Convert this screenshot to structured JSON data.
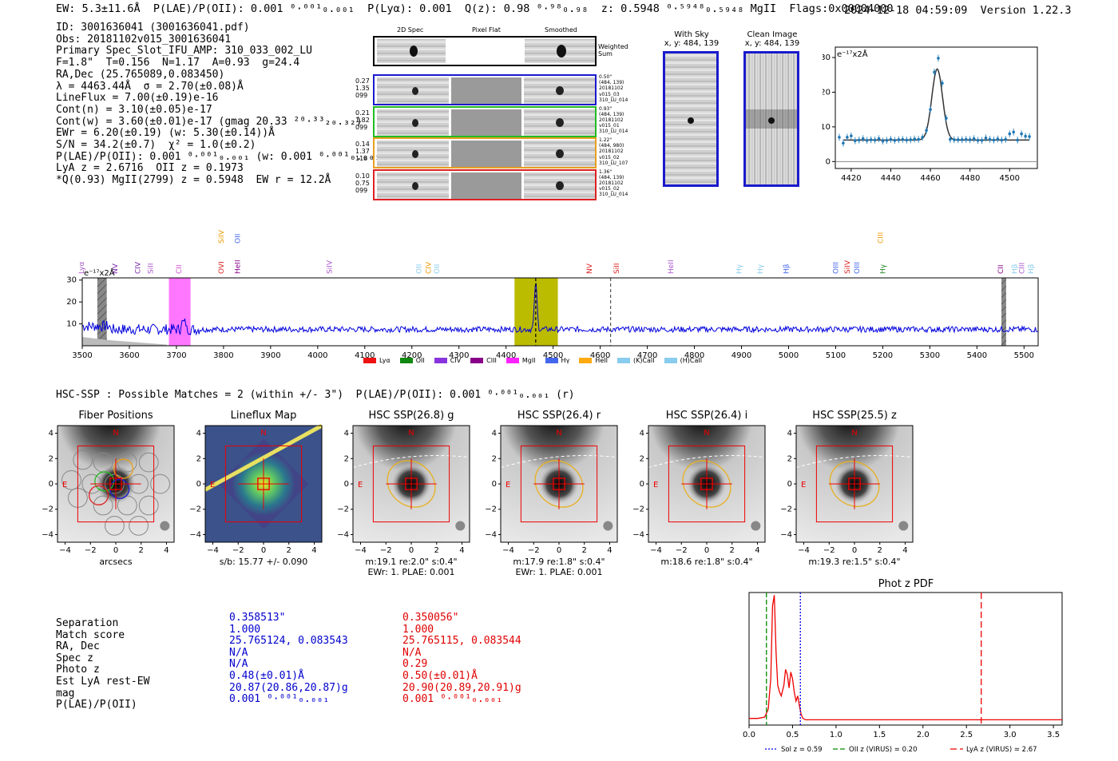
{
  "header": {
    "left": "EW: 5.3±11.6Å  P(LAE)/P(OII): 0.001 ⁰·⁰⁰¹₀.₀₀₁  P(Lyα): 0.001  Q(z): 0.98 ⁰·⁹⁸₀.₉₈  z: 0.5948 ⁰·⁵⁹⁴⁸₀.₅₉₄₈ MgII  Flags:0x00004000",
    "right": "2024-12-18 04:59:09  Version 1.22.3"
  },
  "info": [
    "ID: 3001636041 (3001636041.pdf)",
    "Obs: 20181102v015_3001636041",
    "Primary Spec_Slot_IFU_AMP: 310_033_002_LU",
    "F=1.8\"  T=0.156  N=1.17  A=0.93  g=24.4",
    "RA,Dec (25.765089,0.083450)",
    "λ = 4463.44Å  σ = 2.70(±0.08)Å",
    "LineFlux = 7.00(±0.19)e-16",
    "Cont(n) = 3.10(±0.05)e-17",
    "Cont(w) = 3.60(±0.01)e-17 (gmag 20.33 ²⁰·³³₂₀.₃₂)",
    "EWr = 6.20(±0.19) (w: 5.30(±0.14))Å",
    "S/N = 34.2(±0.7)  χ² = 1.0(±0.2)",
    "P(LAE)/P(OII): 0.001 ⁰·⁰⁰¹₀.₀₀₁ (w: 0.001 ⁰·⁰⁰¹₀.₀₀₁)",
    "LyA z = 2.6716  OII z = 0.1973",
    "*Q(0.93) MgII(2799) z = 0.5948  EW r = 12.2Å"
  ],
  "cutouts": {
    "col_headers": [
      "2D Spec",
      "Pixel Flat",
      "Smoothed"
    ],
    "weighted_label": "Weighted Sum",
    "rows": [
      {
        "left": [
          "0.27",
          "1.35",
          "099"
        ],
        "right": [
          "0.50\"",
          "(484, 139)",
          "20181102",
          "v015_03",
          "310_LU_014"
        ],
        "color": "#1a1acc"
      },
      {
        "left": [
          "0.21",
          "1.82",
          "099"
        ],
        "right": [
          "0.93\"",
          "(484, 139)",
          "20181102",
          "v015_01",
          "310_LU_014"
        ],
        "color": "#22bb22"
      },
      {
        "left": [
          "0.14",
          "1.37",
          "118"
        ],
        "right": [
          "1.22\"",
          "(484, 980)",
          "20181102",
          "v015_02",
          "310_LU_107"
        ],
        "color": "#e8a020"
      },
      {
        "left": [
          "0.10",
          "0.75",
          "099"
        ],
        "right": [
          "1.36\"",
          "(484, 139)",
          "20181102",
          "v015_02",
          "310_LU_014"
        ],
        "color": "#dd2222"
      }
    ]
  },
  "with_sky": {
    "title": "With Sky",
    "coords": "x, y: 484, 139"
  },
  "clean_image": {
    "title": "Clean Image",
    "coords": "x, y: 484, 139"
  },
  "zoom_plot": {
    "unit": "e⁻¹⁷x2Å",
    "chart_data": {
      "type": "line",
      "title": "",
      "xlim": [
        4412,
        4514
      ],
      "ylim": [
        -2,
        33
      ],
      "xticks": [
        4420,
        4440,
        4460,
        4480,
        4500
      ],
      "yticks": [
        0,
        10,
        20,
        30
      ],
      "x": [
        4414,
        4416,
        4418,
        4420,
        4422,
        4424,
        4426,
        4428,
        4430,
        4432,
        4434,
        4436,
        4438,
        4440,
        4442,
        4444,
        4446,
        4448,
        4450,
        4452,
        4454,
        4456,
        4458,
        4460,
        4462,
        4464,
        4466,
        4468,
        4470,
        4472,
        4474,
        4476,
        4478,
        4480,
        4482,
        4484,
        4486,
        4488,
        4490,
        4492,
        4494,
        4496,
        4498,
        4500,
        4502,
        4504,
        4506,
        4508,
        4510
      ],
      "y": [
        7,
        5.3,
        7,
        7.4,
        6,
        6.2,
        6.6,
        6.1,
        6.3,
        6.2,
        6.6,
        5.9,
        6.1,
        6.4,
        6.1,
        6.3,
        6.4,
        6.2,
        6.3,
        6.5,
        6.4,
        7,
        9,
        15,
        25.8,
        29.8,
        22.6,
        12.5,
        6.4,
        6.3,
        6.3,
        6.3,
        6.4,
        6.3,
        6.6,
        6.1,
        6.1,
        6.8,
        6.4,
        6.2,
        6.5,
        6.2,
        6.4,
        8,
        8.5,
        6.2,
        8,
        7.3,
        7.2
      ],
      "fit": {
        "center": 4463.44,
        "sigma": 2.7,
        "amplitude": 20.5,
        "continuum": 6.2
      }
    }
  },
  "spectrum": {
    "unit": "e⁻¹⁷x2Å",
    "chart_data": {
      "type": "line",
      "xlim": [
        3500,
        5530
      ],
      "ylim": [
        0,
        31
      ],
      "xticks": [
        3500,
        3600,
        3700,
        3800,
        3900,
        4000,
        4100,
        4200,
        4300,
        4400,
        4500,
        4600,
        4700,
        4800,
        4900,
        5000,
        5100,
        5200,
        5300,
        5400,
        5500
      ],
      "yticks": [
        10,
        20,
        30
      ],
      "baseline": 7.5,
      "peak": {
        "x": 4463,
        "y": 29
      },
      "bands": [
        {
          "from": 3532,
          "to": 3552,
          "color": "#888888",
          "hatch": true
        },
        {
          "from": 3684,
          "to": 3730,
          "color": "#ff77ff"
        },
        {
          "from": 4418,
          "to": 4510,
          "color": "#bbbb00"
        },
        {
          "from": 5452,
          "to": 5462,
          "color": "#888888",
          "hatch": true
        }
      ],
      "dashed_lines": [
        {
          "x": 4463,
          "color": "#000000"
        },
        {
          "x": 4622,
          "color": "#555555"
        }
      ],
      "line_labels": [
        {
          "x": 3503,
          "label": "Lyα",
          "color": "#aa55cc",
          "row": 0
        },
        {
          "x": 3575,
          "label": "NV",
          "color": "#7722aa",
          "row": 0
        },
        {
          "x": 3623,
          "label": "CIV",
          "color": "#7722aa",
          "row": 0
        },
        {
          "x": 3650,
          "label": "SiII",
          "color": "#aa55cc",
          "row": 0
        },
        {
          "x": 3710,
          "label": "CII",
          "color": "#cc44cc",
          "row": 0
        },
        {
          "x": 3800,
          "label": "OVI",
          "color": "#dd2222",
          "row": 0
        },
        {
          "x": 3800,
          "label": "SiIV",
          "color": "#ee9900",
          "row": 1
        },
        {
          "x": 3835,
          "label": "HeII",
          "color": "#880088",
          "row": 0
        },
        {
          "x": 3835,
          "label": "OII",
          "color": "#4466ee",
          "row": 1
        },
        {
          "x": 4030,
          "label": "SiIV",
          "color": "#aa55cc",
          "row": 0
        },
        {
          "x": 4220,
          "label": "OII",
          "color": "#88ccee",
          "row": 0
        },
        {
          "x": 4240,
          "label": "CIV",
          "color": "#ee9900",
          "row": 0
        },
        {
          "x": 4258,
          "label": "OII",
          "color": "#88ccee",
          "row": 0
        },
        {
          "x": 4582,
          "label": "NV",
          "color": "#dd2222",
          "row": 0
        },
        {
          "x": 4640,
          "label": "SiII",
          "color": "#dd2222",
          "row": 0
        },
        {
          "x": 4755,
          "label": "HeII",
          "color": "#aa55cc",
          "row": 0
        },
        {
          "x": 4900,
          "label": "Hγ",
          "color": "#88ccee",
          "row": 0
        },
        {
          "x": 4945,
          "label": "Hγ",
          "color": "#88ccee",
          "row": 0
        },
        {
          "x": 5000,
          "label": "Hβ",
          "color": "#4466ee",
          "row": 0
        },
        {
          "x": 5105,
          "label": "OIII",
          "color": "#4466ee",
          "row": 0
        },
        {
          "x": 5130,
          "label": "SiIV",
          "color": "#dd2222",
          "row": 0
        },
        {
          "x": 5150,
          "label": "OIII",
          "color": "#4466ee",
          "row": 0
        },
        {
          "x": 5205,
          "label": "Hγ",
          "color": "#228822",
          "row": 0
        },
        {
          "x": 5200,
          "label": "CIII",
          "color": "#ee9900",
          "row": 1
        },
        {
          "x": 5455,
          "label": "CII",
          "color": "#880088",
          "row": 0
        },
        {
          "x": 5485,
          "label": "Hβ",
          "color": "#88ccee",
          "row": 0
        },
        {
          "x": 5500,
          "label": "CIII",
          "color": "#aa55cc",
          "row": 0
        },
        {
          "x": 5520,
          "label": "Hβ",
          "color": "#88ccee",
          "row": 0
        }
      ]
    },
    "legend": [
      {
        "label": "Lyα",
        "color": "#ee1111"
      },
      {
        "label": "OII",
        "color": "#118811"
      },
      {
        "label": "CIV",
        "color": "#8833dd"
      },
      {
        "label": "CIII",
        "color": "#880088"
      },
      {
        "label": "MgII",
        "color": "#ff22ff"
      },
      {
        "label": "Hγ",
        "color": "#4466ee"
      },
      {
        "label": "HeII",
        "color": "#ffaa11"
      },
      {
        "label": "(K)CaII",
        "color": "#88ccee"
      },
      {
        "label": "(H)CaII",
        "color": "#88ccee"
      }
    ]
  },
  "hsc_header": "HSC-SSP : Possible Matches = 2 (within +/- 3\")  P(LAE)/P(OII): 0.001 ⁰·⁰⁰¹₀.₀₀₁ (r)",
  "panels": [
    {
      "title": "Fiber Positions",
      "cap1": "arcsecs",
      "cap2": ""
    },
    {
      "title": "Lineflux Map",
      "cap1": "s/b: 15.77 +/- 0.090",
      "cap2": ""
    },
    {
      "title": "HSC SSP(26.8) g",
      "cap1": "m:19.1  re:2.0\"  s:0.4\"",
      "cap2": "EWr: 1. PLAE: 0.001"
    },
    {
      "title": "HSC SSP(26.4) r",
      "cap1": "m:17.9  re:1.8\"  s:0.4\"",
      "cap2": "EWr: 1. PLAE: 0.001"
    },
    {
      "title": "HSC SSP(26.4) i",
      "cap1": "m:18.6  re:1.8\"  s:0.4\"",
      "cap2": ""
    },
    {
      "title": "HSC SSP(25.5) z",
      "cap1": "m:19.3  re:1.5\"  s:0.4\"",
      "cap2": ""
    }
  ],
  "panel_axis": {
    "ticks": [
      "−4",
      "−2",
      "0",
      "2",
      "4"
    ],
    "north": "N",
    "east": "E"
  },
  "comparison": {
    "labels": [
      "Separation",
      "Match score",
      "RA, Dec",
      "Spec z",
      "Photo z",
      "Est LyA rest-EW",
      "mag",
      "P(LAE)/P(OII)"
    ],
    "col1": [
      "0.358513\"",
      "1.000",
      "25.765124, 0.083543",
      "N/A",
      "N/A",
      "0.48(±0.01)Å",
      "20.87(20.86,20.87)g",
      "0.001 ⁰·⁰⁰¹₀.₀₀₁"
    ],
    "col2": [
      "0.350056\"",
      "1.000",
      "25.765115, 0.083544",
      "N/A",
      "0.29",
      "0.50(±0.01)Å",
      "20.90(20.89,20.91)g",
      "0.001 ⁰·⁰⁰¹₀.₀₀₁"
    ]
  },
  "photz": {
    "title": "Phot z PDF",
    "chart_data": {
      "type": "line",
      "xlim": [
        0,
        3.6
      ],
      "ylim": [
        0,
        1
      ],
      "xticks": [
        "0.0",
        "0.5",
        "1.0",
        "1.5",
        "2.0",
        "2.5",
        "3.0",
        "3.5"
      ],
      "x": [
        0,
        0.1,
        0.18,
        0.22,
        0.25,
        0.27,
        0.29,
        0.31,
        0.33,
        0.35,
        0.37,
        0.4,
        0.42,
        0.44,
        0.46,
        0.48,
        0.5,
        0.52,
        0.54,
        0.56,
        0.58,
        0.6,
        0.62,
        0.65,
        0.7,
        1.0,
        2.0,
        3.0,
        3.6
      ],
      "y": [
        0.05,
        0.05,
        0.06,
        0.12,
        0.35,
        0.9,
        0.98,
        0.55,
        0.3,
        0.25,
        0.22,
        0.3,
        0.42,
        0.38,
        0.28,
        0.4,
        0.35,
        0.25,
        0.18,
        0.22,
        0.14,
        0.08,
        0.05,
        0.04,
        0.04,
        0.04,
        0.04,
        0.04,
        0.04
      ],
      "vlines": [
        {
          "x": 0.59,
          "color": "#0000ee",
          "dash": "2,2",
          "label": "Sol z = 0.59"
        },
        {
          "x": 0.2,
          "color": "#008800",
          "dash": "6,3",
          "label": "OII z (VIRUS) = 0.20"
        },
        {
          "x": 2.67,
          "color": "#ee0000",
          "dash": "8,4",
          "label": "LyA z (VIRUS) = 2.67"
        }
      ]
    }
  }
}
